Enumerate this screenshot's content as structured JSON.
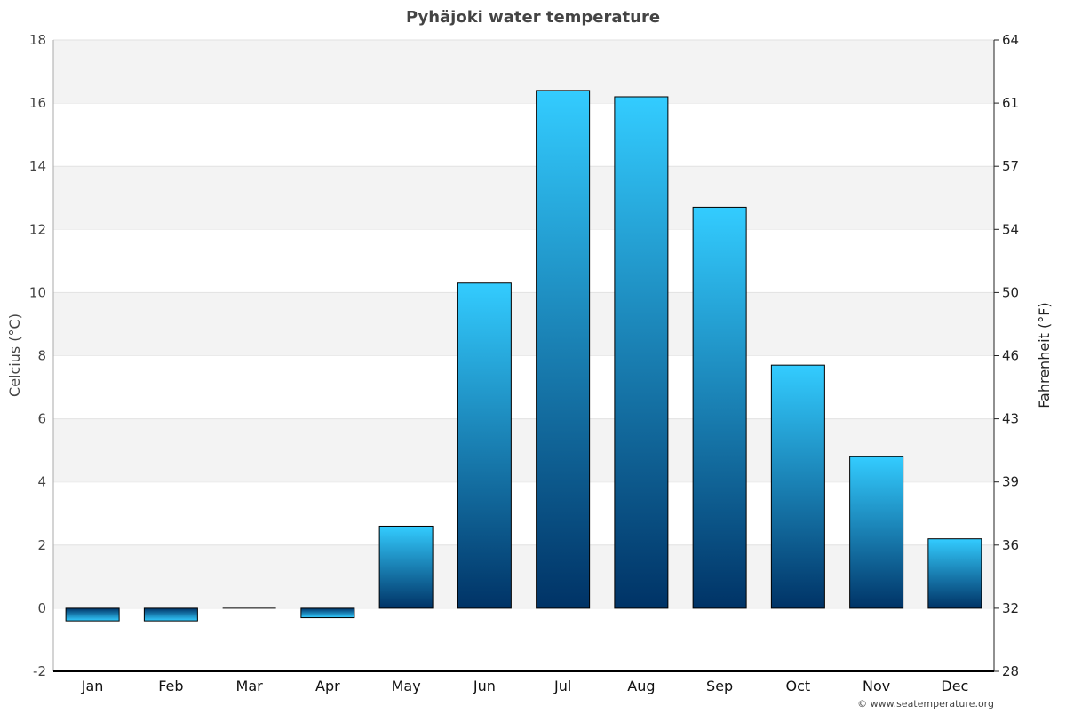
{
  "chart_data": {
    "type": "bar",
    "title": "Pyhäjoki water temperature",
    "ylabel": "Celcius (°C)",
    "y2label": "Fahrenheit (°F)",
    "categories": [
      "Jan",
      "Feb",
      "Mar",
      "Apr",
      "May",
      "Jun",
      "Jul",
      "Aug",
      "Sep",
      "Oct",
      "Nov",
      "Dec"
    ],
    "values": [
      -0.4,
      -0.4,
      0,
      -0.3,
      2.6,
      10.3,
      16.4,
      16.2,
      12.7,
      7.7,
      4.8,
      2.2
    ],
    "ylim": [
      -2,
      18
    ],
    "yticks": [
      "-2",
      "0",
      "2",
      "4",
      "6",
      "8",
      "10",
      "12",
      "14",
      "16",
      "18"
    ],
    "y2ticks": [
      "28",
      "32",
      "36",
      "39",
      "43",
      "46",
      "50",
      "54",
      "57",
      "61",
      "64"
    ],
    "grid": true,
    "colors": {
      "bar_top": "#33ccff",
      "bar_bottom": "#003366",
      "band": "#f3f3f3"
    },
    "credit": "© www.seatemperature.org"
  }
}
